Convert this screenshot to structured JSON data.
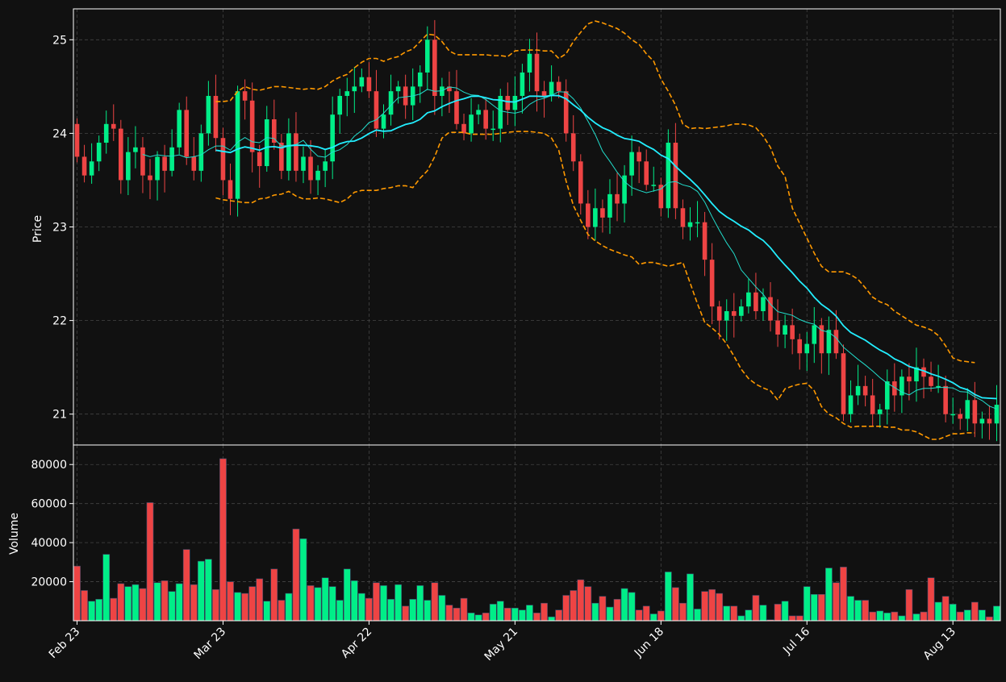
{
  "chart_data": {
    "type": "candlestick",
    "theme": {
      "background": "#111111",
      "up_color": "#00ee88",
      "down_color": "#ee4444",
      "ma_fast_color": "#22eeff",
      "ma_slow_color": "#22ddcc",
      "band_color": "#ff9900",
      "grid_color": "#444444",
      "text_color": "#ffffff"
    },
    "price_panel": {
      "ylabel": "Price",
      "ylim": [
        20.67,
        25.33
      ],
      "yticks": [
        "21",
        "22",
        "23",
        "24",
        "25"
      ],
      "grid": true
    },
    "volume_panel": {
      "ylabel": "Volume",
      "ylim": [
        0,
        90000
      ],
      "yticks": [
        "20000",
        "40000",
        "60000",
        "80000"
      ],
      "grid": true
    },
    "xticks": [
      {
        "label": "Feb 23",
        "index": 0
      },
      {
        "label": "Mar 23",
        "index": 20
      },
      {
        "label": "Apr 22",
        "index": 40
      },
      {
        "label": "May 21",
        "index": 60
      },
      {
        "label": "Jun 18",
        "index": 80
      },
      {
        "label": "Jul 16",
        "index": 100
      },
      {
        "label": "Aug 13",
        "index": 120
      }
    ],
    "count": 127,
    "closes": [
      23.75,
      23.55,
      23.7,
      23.9,
      24.1,
      24.05,
      23.5,
      23.8,
      23.85,
      23.55,
      23.5,
      23.75,
      23.6,
      23.85,
      24.25,
      23.75,
      23.6,
      24.0,
      24.4,
      23.95,
      23.5,
      23.3,
      24.45,
      24.35,
      23.8,
      23.65,
      24.15,
      23.9,
      23.6,
      24.0,
      23.6,
      23.75,
      23.5,
      23.6,
      23.7,
      24.2,
      24.4,
      24.45,
      24.5,
      24.6,
      24.45,
      24.05,
      24.2,
      24.45,
      24.5,
      24.3,
      24.5,
      24.65,
      25.0,
      24.4,
      24.5,
      24.45,
      24.1,
      24.0,
      24.2,
      24.25,
      24.05,
      24.05,
      24.4,
      24.25,
      24.4,
      24.65,
      24.85,
      24.45,
      24.4,
      24.55,
      24.45,
      24.0,
      23.7,
      23.25,
      23.0,
      23.2,
      23.1,
      23.35,
      23.25,
      23.55,
      23.8,
      23.7,
      23.45,
      23.45,
      23.2,
      23.9,
      23.2,
      23.0,
      23.05,
      23.05,
      22.65,
      22.15,
      22.0,
      22.1,
      22.05,
      22.15,
      22.3,
      22.1,
      22.25,
      22.0,
      21.85,
      21.95,
      21.8,
      21.65,
      21.75,
      21.95,
      21.65,
      21.9,
      21.65,
      21.0,
      21.2,
      21.3,
      21.2,
      21.0,
      21.05,
      21.35,
      21.2,
      21.4,
      21.35,
      21.5,
      21.4,
      21.3,
      21.3,
      21.0,
      21.0,
      20.95,
      21.15,
      20.9,
      20.95,
      20.9,
      21.1
    ],
    "volumes": [
      28000,
      15500,
      10000,
      11000,
      34000,
      11500,
      19000,
      17500,
      18500,
      16500,
      60500,
      19500,
      20500,
      15000,
      19000,
      36500,
      18500,
      30500,
      31500,
      16000,
      83000,
      20000,
      14500,
      14000,
      17500,
      21500,
      10000,
      26500,
      10500,
      14000,
      47000,
      42000,
      18000,
      17000,
      22000,
      17500,
      10500,
      26500,
      20500,
      14000,
      11500,
      19500,
      18000,
      11000,
      18500,
      7500,
      11000,
      18000,
      10500,
      19500,
      13000,
      8000,
      6500,
      11500,
      4000,
      3000,
      4000,
      8500,
      10000,
      6500,
      6500,
      5500,
      8000,
      4000,
      9000,
      2000,
      5500,
      13000,
      15500,
      21000,
      17500,
      9000,
      12500,
      7000,
      11000,
      16500,
      14500,
      5500,
      7500,
      3500,
      5000,
      25000,
      17000,
      9000,
      24000,
      6000,
      15000,
      16000,
      14000,
      7500,
      7500,
      2500,
      5500,
      13000,
      8000,
      500,
      8500,
      10000,
      2500,
      2500,
      17500,
      13500,
      13500,
      27000,
      19500,
      27500,
      12500,
      10500,
      10500,
      4500,
      5000,
      4000,
      4500,
      2500,
      16000,
      3500,
      4500,
      22000,
      9500,
      12500,
      8500,
      4500,
      5500,
      9500,
      5500,
      2000,
      7500
    ],
    "bands": {
      "start_index": 19,
      "upper": [
        24.34,
        24.34,
        24.35,
        24.45,
        24.5,
        24.47,
        24.46,
        24.48,
        24.5,
        24.5,
        24.49,
        24.48,
        24.47,
        24.48,
        24.47,
        24.5,
        24.56,
        24.6,
        24.63,
        24.7,
        24.76,
        24.8,
        24.8,
        24.77,
        24.8,
        24.82,
        24.87,
        24.9,
        24.98,
        25.06,
        25.05,
        24.98,
        24.88,
        24.84,
        24.84,
        24.84,
        24.84,
        24.84,
        24.83,
        24.83,
        24.82,
        24.88,
        24.89,
        24.89,
        24.89,
        24.88,
        24.88,
        24.8,
        24.85,
        24.98,
        25.08,
        25.17,
        25.2,
        25.18,
        25.15,
        25.12,
        25.07,
        25.0,
        24.95,
        24.85,
        24.77,
        24.58,
        24.45,
        24.3,
        24.1,
        24.05,
        24.06,
        24.05,
        24.06,
        24.07,
        24.08,
        24.1,
        24.1,
        24.09,
        24.06,
        23.97,
        23.85,
        23.65,
        23.54,
        23.2,
        23.04,
        22.88,
        22.72,
        22.58,
        22.52,
        22.52,
        22.52,
        22.49,
        22.44,
        22.35,
        22.25,
        22.2,
        22.17,
        22.1,
        22.05,
        22.0,
        21.95,
        21.93,
        21.9,
        21.84,
        21.73,
        21.6,
        21.57,
        21.56,
        21.55
      ],
      "lower": [
        23.31,
        23.29,
        23.28,
        23.27,
        23.26,
        23.26,
        23.3,
        23.31,
        23.34,
        23.35,
        23.38,
        23.33,
        23.3,
        23.3,
        23.31,
        23.3,
        23.28,
        23.26,
        23.3,
        23.37,
        23.39,
        23.39,
        23.39,
        23.41,
        23.42,
        23.44,
        23.44,
        23.42,
        23.52,
        23.6,
        23.75,
        23.95,
        24.01,
        24.01,
        24.01,
        23.99,
        23.99,
        23.99,
        23.99,
        24.0,
        24.01,
        24.02,
        24.02,
        24.02,
        24.01,
        24.0,
        23.95,
        23.82,
        23.49,
        23.23,
        23.07,
        22.92,
        22.85,
        22.8,
        22.76,
        22.73,
        22.7,
        22.68,
        22.6,
        22.62,
        22.62,
        22.6,
        22.58,
        22.6,
        22.62,
        22.4,
        22.18,
        21.98,
        21.92,
        21.85,
        21.75,
        21.62,
        21.48,
        21.38,
        21.32,
        21.28,
        21.25,
        21.15,
        21.27,
        21.3,
        21.32,
        21.33,
        21.25,
        21.08,
        21.0,
        20.96,
        20.9,
        20.86,
        20.87,
        20.87,
        20.87,
        20.87,
        20.86,
        20.86,
        20.83,
        20.83,
        20.81,
        20.77,
        20.73,
        20.73,
        20.76,
        20.79,
        20.79,
        20.8,
        20.8
      ]
    }
  }
}
